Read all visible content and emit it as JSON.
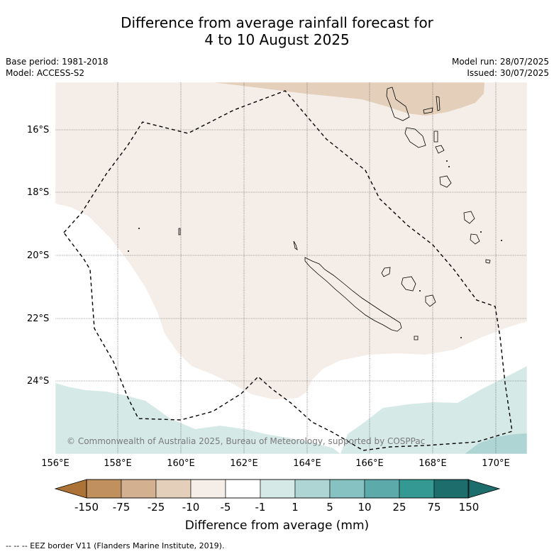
{
  "title_line1": "Difference from average rainfall forecast for",
  "title_line2": "4 to 10 August 2025",
  "base_period": "Base period: 1981-2018",
  "model": "Model: ACCESS-S2",
  "model_run": "Model run: 28/07/2025",
  "issued": "Issued: 30/07/2025",
  "lat_labels": [
    "16°S",
    "18°S",
    "20°S",
    "22°S",
    "24°S"
  ],
  "lon_labels": [
    "156°E",
    "158°E",
    "160°E",
    "162°E",
    "164°E",
    "166°E",
    "168°E",
    "170°E"
  ],
  "copyright": "© Commonwealth of Australia 2025, Bureau of Meteorology, supported by COSPPac",
  "colorbar": {
    "title": "Difference from average (mm)",
    "ticks": [
      "-150",
      "-75",
      "-25",
      "-10",
      "-5",
      "-1",
      "1",
      "5",
      "10",
      "25",
      "75",
      "150"
    ],
    "colors": [
      "#ad7236",
      "#c0905f",
      "#d2b090",
      "#e4cfbb",
      "#f5eee8",
      "#ffffff",
      "#d5e9e6",
      "#aed5d4",
      "#86c2c1",
      "#5daaab",
      "#349893",
      "#1d6d6d"
    ]
  },
  "footer": "--  --  -- EEZ border V11 (Flanders Marine Institute, 2019)."
}
